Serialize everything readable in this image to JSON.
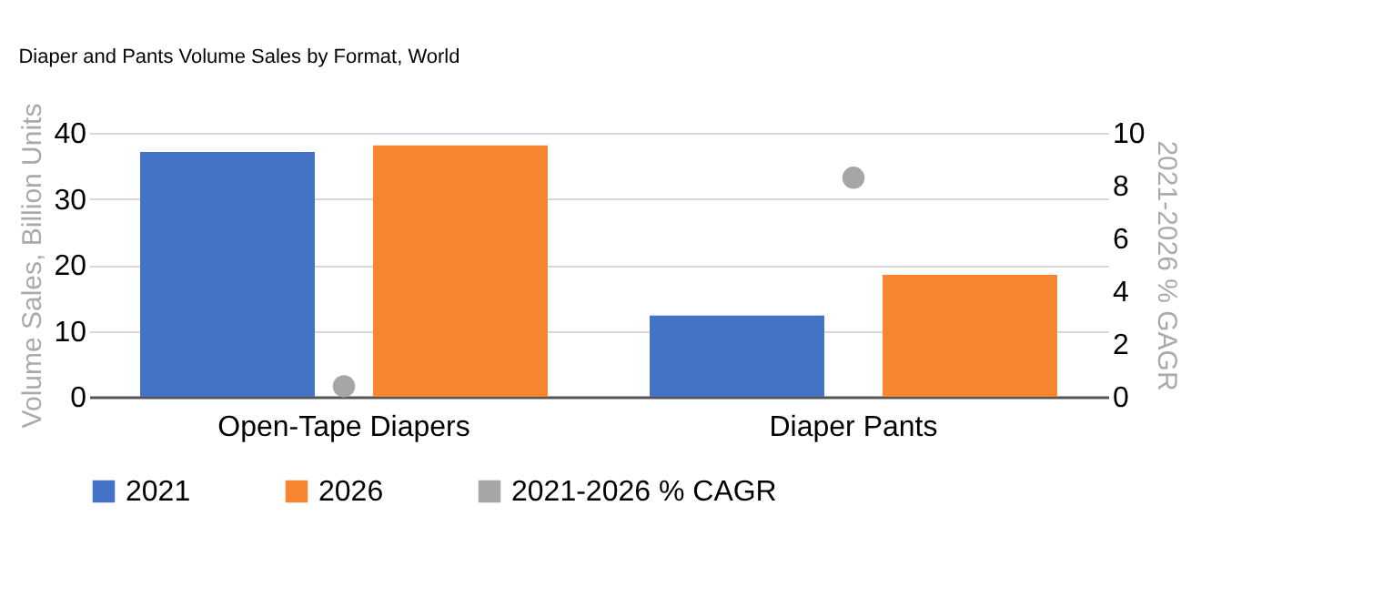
{
  "chart_data": {
    "type": "bar",
    "title": "Diaper and Pants Volume Sales by Format, World",
    "categories": [
      "Open-Tape Diapers",
      "Diaper Pants"
    ],
    "series": [
      {
        "name": "2021",
        "color": "#4472c4",
        "values": [
          37.1,
          12.3
        ]
      },
      {
        "name": "2026",
        "color": "#f6862f",
        "values": [
          38.1,
          18.5
        ]
      },
      {
        "name": "2021-2026 % CAGR",
        "type": "scatter",
        "axis": "y2",
        "color": "#a6a6a6",
        "values": [
          0.4,
          8.3
        ]
      }
    ],
    "ylabel": "Volume Sales, Billion Units",
    "y2label": "2021-2026 % GAGR",
    "ylim": [
      0,
      40
    ],
    "yticks": [
      0,
      10,
      20,
      30,
      40
    ],
    "y2lim": [
      0,
      10
    ],
    "y2ticks": [
      0,
      2,
      4,
      6,
      8,
      10
    ],
    "grid": "y",
    "legend": "bottom",
    "marker": "circle"
  }
}
